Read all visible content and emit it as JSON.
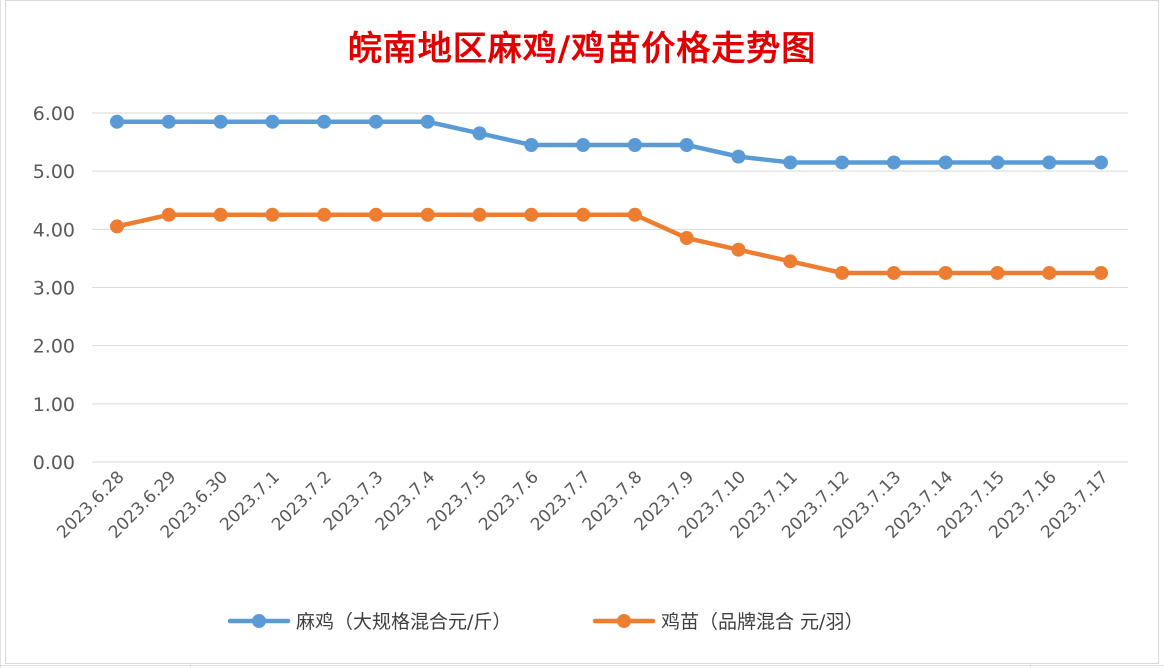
{
  "chart_data": {
    "type": "line",
    "title": "皖南地区麻鸡/鸡苗价格走势图",
    "xlabel": "",
    "ylabel": "",
    "ylim": [
      0,
      6
    ],
    "yticks": [
      "0.00",
      "1.00",
      "2.00",
      "3.00",
      "4.00",
      "5.00",
      "6.00"
    ],
    "grid": true,
    "legend_position": "bottom",
    "categories": [
      "2023.6.28",
      "2023.6.29",
      "2023.6.30",
      "2023.7.1",
      "2023.7.2",
      "2023.7.3",
      "2023.7.4",
      "2023.7.5",
      "2023.7.6",
      "2023.7.7",
      "2023.7.8",
      "2023.7.9",
      "2023.7.10",
      "2023.7.11",
      "2023.7.12",
      "2023.7.13",
      "2023.7.14",
      "2023.7.15",
      "2023.7.16",
      "2023.7.17"
    ],
    "series": [
      {
        "name": "麻鸡（大规格混合元/斤）",
        "color": "#5b9bd5",
        "values": [
          5.85,
          5.85,
          5.85,
          5.85,
          5.85,
          5.85,
          5.85,
          5.65,
          5.45,
          5.45,
          5.45,
          5.45,
          5.25,
          5.15,
          5.15,
          5.15,
          5.15,
          5.15,
          5.15,
          5.15
        ]
      },
      {
        "name": "鸡苗（品牌混合 元/羽）",
        "color": "#ed7d31",
        "values": [
          4.05,
          4.25,
          4.25,
          4.25,
          4.25,
          4.25,
          4.25,
          4.25,
          4.25,
          4.25,
          4.25,
          3.85,
          3.65,
          3.45,
          3.25,
          3.25,
          3.25,
          3.25,
          3.25,
          3.25
        ]
      }
    ]
  }
}
